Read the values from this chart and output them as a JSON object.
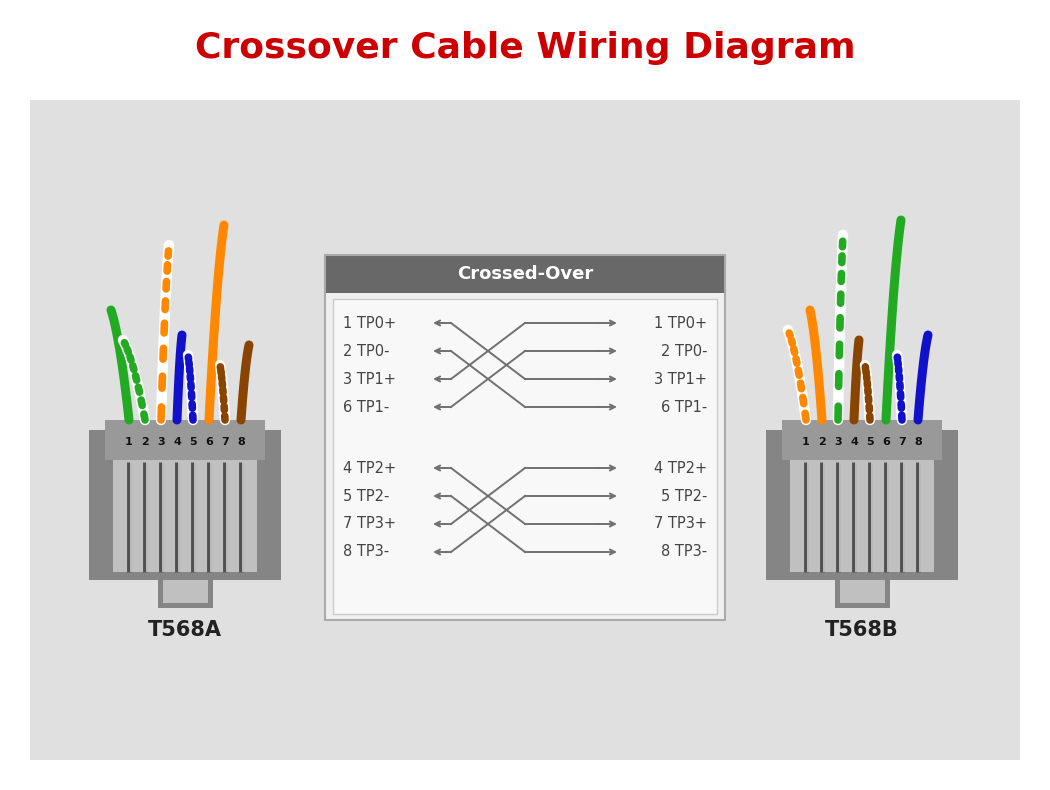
{
  "title": "Crossover Cable Wiring Diagram",
  "title_color": "#cc0000",
  "title_fontsize": 26,
  "bg_color": "#e0e0e0",
  "white_bg": "#ffffff",
  "box_header_color": "#686868",
  "box_bg_color": "#f0f0f0",
  "box_border_color": "#aaaaaa",
  "crossed_over_text": "Crossed-Over",
  "label_a": "T568A",
  "label_b": "T568B",
  "pin_labels_left": [
    "1 TP0+",
    "2 TP0-",
    "3 TP1+",
    "6 TP1-"
  ],
  "pin_labels_right": [
    "1 TP0+",
    "2 TP0-",
    "3 TP1+",
    "6 TP1-"
  ],
  "pin_labels_left2": [
    "4 TP2+",
    "5 TP2-",
    "7 TP3+",
    "8 TP3-"
  ],
  "pin_labels_right2": [
    "4 TP2+",
    "5 TP2-",
    "7 TP3+",
    "8 TP3-"
  ],
  "line_color": "#707070",
  "text_color": "#444444",
  "connector_outer": "#858585",
  "connector_inner": "#c0c0c0",
  "connector_top": "#999999",
  "pin_line_dark": "#555555",
  "pin_line_light": "#bbbbbb"
}
